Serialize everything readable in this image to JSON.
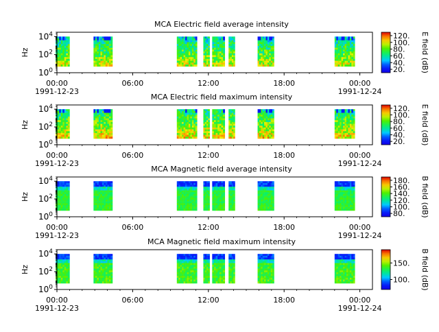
{
  "figure": {
    "date_start": "1991-12-23",
    "date_end": "1991-12-24"
  },
  "chart_data": [
    {
      "type": "heatmap",
      "title": "MCA  Electric field average intensity",
      "ylabel": "Hz",
      "yscale": "log",
      "ylim": [
        1,
        30000
      ],
      "y_ticks": [
        {
          "base": "10",
          "exp": "0"
        },
        {
          "base": "10",
          "exp": "2"
        },
        {
          "base": "10",
          "exp": "4"
        }
      ],
      "xlim": [
        "1991-12-23T00:00",
        "1991-12-24T01:00"
      ],
      "x_ticks": [
        {
          "time": "00:00",
          "date": "1991-12-23"
        },
        {
          "time": "06:00",
          "date": ""
        },
        {
          "time": "12:00",
          "date": ""
        },
        {
          "time": "18:00",
          "date": ""
        },
        {
          "time": "00:00",
          "date": "1991-12-24"
        }
      ],
      "colorbar": {
        "label": "E field (dB)",
        "min": 10,
        "max": 130,
        "ticks": [
          "20.",
          "40.",
          "60.",
          "80.",
          "100.",
          "120."
        ],
        "tick_values": [
          20,
          40,
          60,
          80,
          100,
          120
        ]
      },
      "colormap": "rainbow",
      "data_blocks_hours": [
        [
          -0.1,
          1.0
        ],
        [
          2.9,
          4.4
        ],
        [
          9.5,
          11.1
        ],
        [
          11.6,
          12.1
        ],
        [
          12.3,
          13.3
        ],
        [
          13.6,
          14.1
        ],
        [
          15.9,
          17.2
        ],
        [
          22.0,
          23.6
        ]
      ],
      "intensity": "average-electric"
    },
    {
      "type": "heatmap",
      "title": "MCA  Electric field maximum intensity",
      "ylabel": "Hz",
      "yscale": "log",
      "ylim": [
        1,
        30000
      ],
      "y_ticks": [
        {
          "base": "10",
          "exp": "0"
        },
        {
          "base": "10",
          "exp": "2"
        },
        {
          "base": "10",
          "exp": "4"
        }
      ],
      "xlim": [
        "1991-12-23T00:00",
        "1991-12-24T01:00"
      ],
      "x_ticks": [
        {
          "time": "00:00",
          "date": "1991-12-23"
        },
        {
          "time": "06:00",
          "date": ""
        },
        {
          "time": "12:00",
          "date": ""
        },
        {
          "time": "18:00",
          "date": ""
        },
        {
          "time": "00:00",
          "date": "1991-12-24"
        }
      ],
      "colorbar": {
        "label": "E field (dB)",
        "min": 10,
        "max": 130,
        "ticks": [
          "20.",
          "40.",
          "60.",
          "80.",
          "100.",
          "120."
        ],
        "tick_values": [
          20,
          40,
          60,
          80,
          100,
          120
        ]
      },
      "colormap": "rainbow",
      "data_blocks_hours": [
        [
          -0.1,
          1.0
        ],
        [
          2.9,
          4.4
        ],
        [
          9.5,
          11.1
        ],
        [
          11.6,
          12.1
        ],
        [
          12.3,
          13.3
        ],
        [
          13.6,
          14.1
        ],
        [
          15.9,
          17.2
        ],
        [
          22.0,
          23.6
        ]
      ],
      "intensity": "maximum-electric"
    },
    {
      "type": "heatmap",
      "title": "MCA  Magnetic field average intensity",
      "ylabel": "Hz",
      "yscale": "log",
      "ylim": [
        1,
        30000
      ],
      "y_ticks": [
        {
          "base": "10",
          "exp": "0"
        },
        {
          "base": "10",
          "exp": "2"
        },
        {
          "base": "10",
          "exp": "4"
        }
      ],
      "xlim": [
        "1991-12-23T00:00",
        "1991-12-24T01:00"
      ],
      "x_ticks": [
        {
          "time": "00:00",
          "date": "1991-12-23"
        },
        {
          "time": "06:00",
          "date": ""
        },
        {
          "time": "12:00",
          "date": ""
        },
        {
          "time": "18:00",
          "date": ""
        },
        {
          "time": "00:00",
          "date": "1991-12-24"
        }
      ],
      "colorbar": {
        "label": "B field (dB)",
        "min": 70,
        "max": 190,
        "ticks": [
          "80.",
          "100.",
          "120.",
          "140.",
          "160.",
          "180."
        ],
        "tick_values": [
          80,
          100,
          120,
          140,
          160,
          180
        ]
      },
      "colormap": "rainbow",
      "data_blocks_hours": [
        [
          -0.1,
          1.0
        ],
        [
          2.9,
          4.4
        ],
        [
          9.5,
          11.1
        ],
        [
          11.6,
          12.1
        ],
        [
          12.3,
          13.3
        ],
        [
          13.6,
          14.1
        ],
        [
          15.9,
          17.2
        ],
        [
          22.0,
          23.6
        ]
      ],
      "intensity": "average-magnetic"
    },
    {
      "type": "heatmap",
      "title": "MCA  Magnetic field maximum intensity",
      "ylabel": "Hz",
      "yscale": "log",
      "ylim": [
        1,
        30000
      ],
      "y_ticks": [
        {
          "base": "10",
          "exp": "0"
        },
        {
          "base": "10",
          "exp": "2"
        },
        {
          "base": "10",
          "exp": "4"
        }
      ],
      "xlim": [
        "1991-12-23T00:00",
        "1991-12-24T01:00"
      ],
      "x_ticks": [
        {
          "time": "00:00",
          "date": "1991-12-23"
        },
        {
          "time": "06:00",
          "date": ""
        },
        {
          "time": "12:00",
          "date": ""
        },
        {
          "time": "18:00",
          "date": ""
        },
        {
          "time": "00:00",
          "date": "1991-12-24"
        }
      ],
      "colorbar": {
        "label": "B field (dB)",
        "min": 70,
        "max": 190,
        "ticks": [
          "100.",
          "150."
        ],
        "tick_values": [
          100,
          150
        ]
      },
      "colormap": "rainbow",
      "data_blocks_hours": [
        [
          -0.1,
          1.0
        ],
        [
          2.9,
          4.4
        ],
        [
          9.5,
          11.1
        ],
        [
          11.6,
          12.1
        ],
        [
          12.3,
          13.3
        ],
        [
          13.6,
          14.1
        ],
        [
          15.9,
          17.2
        ],
        [
          22.0,
          23.6
        ]
      ],
      "intensity": "maximum-magnetic"
    }
  ]
}
